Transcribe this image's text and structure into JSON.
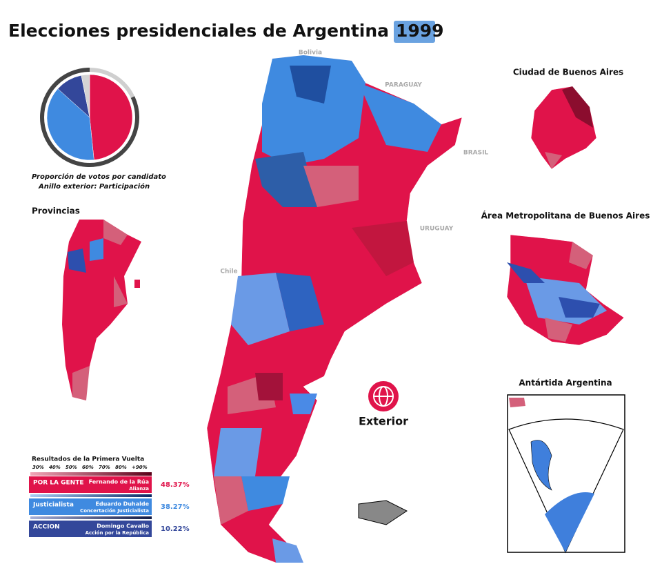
{
  "title": "Elecciones presidenciales de Argentina de",
  "year": "1999",
  "pie": {
    "caption": [
      "Proporción de votos por candidato",
      "Anillo exterior: Participación"
    ],
    "others": {
      "value": 3.14,
      "color": "#d4d4d4"
    },
    "turnout": {
      "value": 82,
      "color": "#444444",
      "rest_color": "#cfcfcf"
    }
  },
  "countries": [
    "Bolivia",
    "PARAGUAY",
    "BRASIL",
    "URUGUAY",
    "Chile"
  ],
  "sections": {
    "provinces": "Provincias",
    "caba": "Ciudad de Buenos Aires",
    "amba": "Área Metropolitana de Buenos Aires",
    "antarctica": "Antártida Argentina",
    "abroad": "Exterior"
  },
  "results": {
    "title": "Resultados de la Primera Vuelta",
    "scale": [
      "30%",
      "40%",
      "50%",
      "60%",
      "70%",
      "80%",
      "+90%"
    ],
    "candidates": [
      {
        "party": "POR LA GENTE",
        "name": "Fernando de la Rúa",
        "alliance": "Alianza",
        "value": 48.37,
        "value_label": "48.37%",
        "color": "#e0134a"
      },
      {
        "party": "Justicialista",
        "name": "Eduardo Duhalde",
        "alliance": "Concertación Justicialista",
        "value": 38.27,
        "value_label": "38.27%",
        "color": "#3f8ae0"
      },
      {
        "party": "ACCION",
        "name": "Domingo Cavallo",
        "alliance": "Acción por la República",
        "value": 10.22,
        "value_label": "10.22%",
        "color": "#33479a"
      }
    ]
  }
}
